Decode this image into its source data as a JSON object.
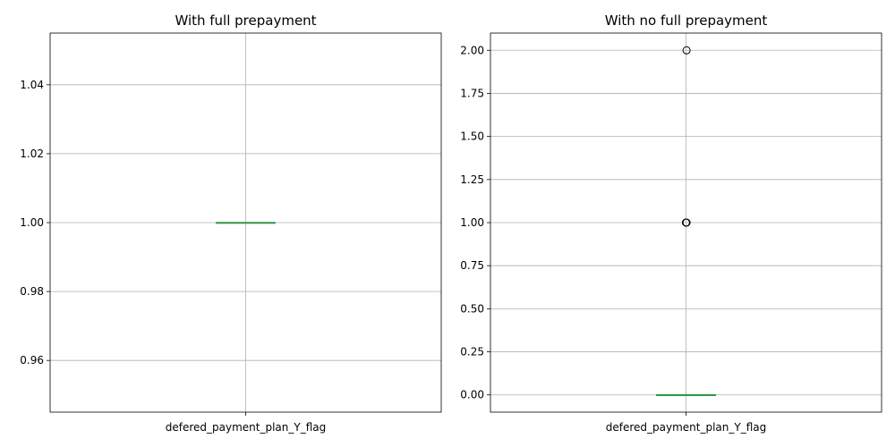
{
  "chart_data": [
    {
      "type": "box",
      "title": "With full prepayment",
      "categories": [
        "defered_payment_plan_Y_flag"
      ],
      "ylim": [
        0.945,
        1.055
      ],
      "yticks": [
        0.96,
        0.98,
        1.0,
        1.02,
        1.04
      ],
      "ytick_labels": [
        "0.96",
        "0.98",
        "1.00",
        "1.02",
        "1.04"
      ],
      "grid": true,
      "boxes": [
        {
          "q1": 1.0,
          "median": 1.0,
          "q3": 1.0,
          "whisker_low": 1.0,
          "whisker_high": 1.0,
          "outliers": []
        }
      ],
      "median_color": "#2ca02c"
    },
    {
      "type": "box",
      "title": "With no full prepayment",
      "categories": [
        "defered_payment_plan_Y_flag"
      ],
      "ylim": [
        -0.1,
        2.1
      ],
      "yticks": [
        0.0,
        0.25,
        0.5,
        0.75,
        1.0,
        1.25,
        1.5,
        1.75,
        2.0
      ],
      "ytick_labels": [
        "0.00",
        "0.25",
        "0.50",
        "0.75",
        "1.00",
        "1.25",
        "1.50",
        "1.75",
        "2.00"
      ],
      "grid": true,
      "boxes": [
        {
          "q1": 0.0,
          "median": 0.0,
          "q3": 0.0,
          "whisker_low": 0.0,
          "whisker_high": 0.0,
          "outliers": [
            1.0,
            1.0,
            1.0,
            2.0
          ]
        }
      ],
      "median_color": "#2ca02c"
    }
  ]
}
